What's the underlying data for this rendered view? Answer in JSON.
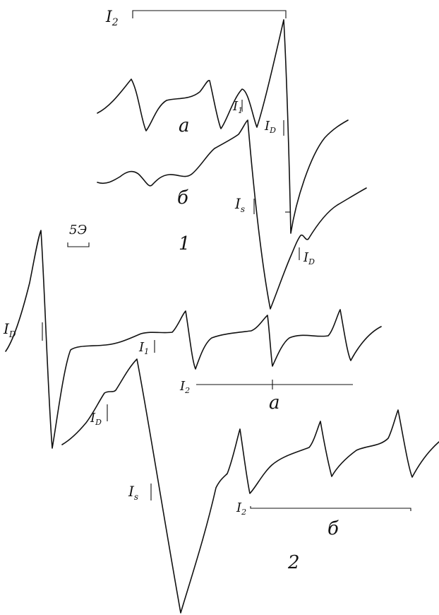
{
  "figure": {
    "scale_label": "5Э",
    "group1": {
      "number": "1",
      "trace_a_label": "а",
      "trace_b_label": "б",
      "i2": {
        "main": "I",
        "sub": "2"
      },
      "i1": {
        "main": "I",
        "sub": "1"
      },
      "id_a": {
        "main": "I",
        "sub": "D"
      },
      "is": {
        "main": "I",
        "sub": "s"
      },
      "id_b": {
        "main": "I",
        "sub": "D"
      }
    },
    "group2": {
      "number": "2",
      "trace_a_label": "а",
      "trace_b_label": "б",
      "id_a": {
        "main": "I",
        "sub": "D"
      },
      "i1": {
        "main": "I",
        "sub": "1"
      },
      "i2_a": {
        "main": "I",
        "sub": "2"
      },
      "id_b": {
        "main": "I",
        "sub": "D"
      },
      "is": {
        "main": "I",
        "sub": "s"
      },
      "i2_b": {
        "main": "I",
        "sub": "2"
      }
    }
  }
}
